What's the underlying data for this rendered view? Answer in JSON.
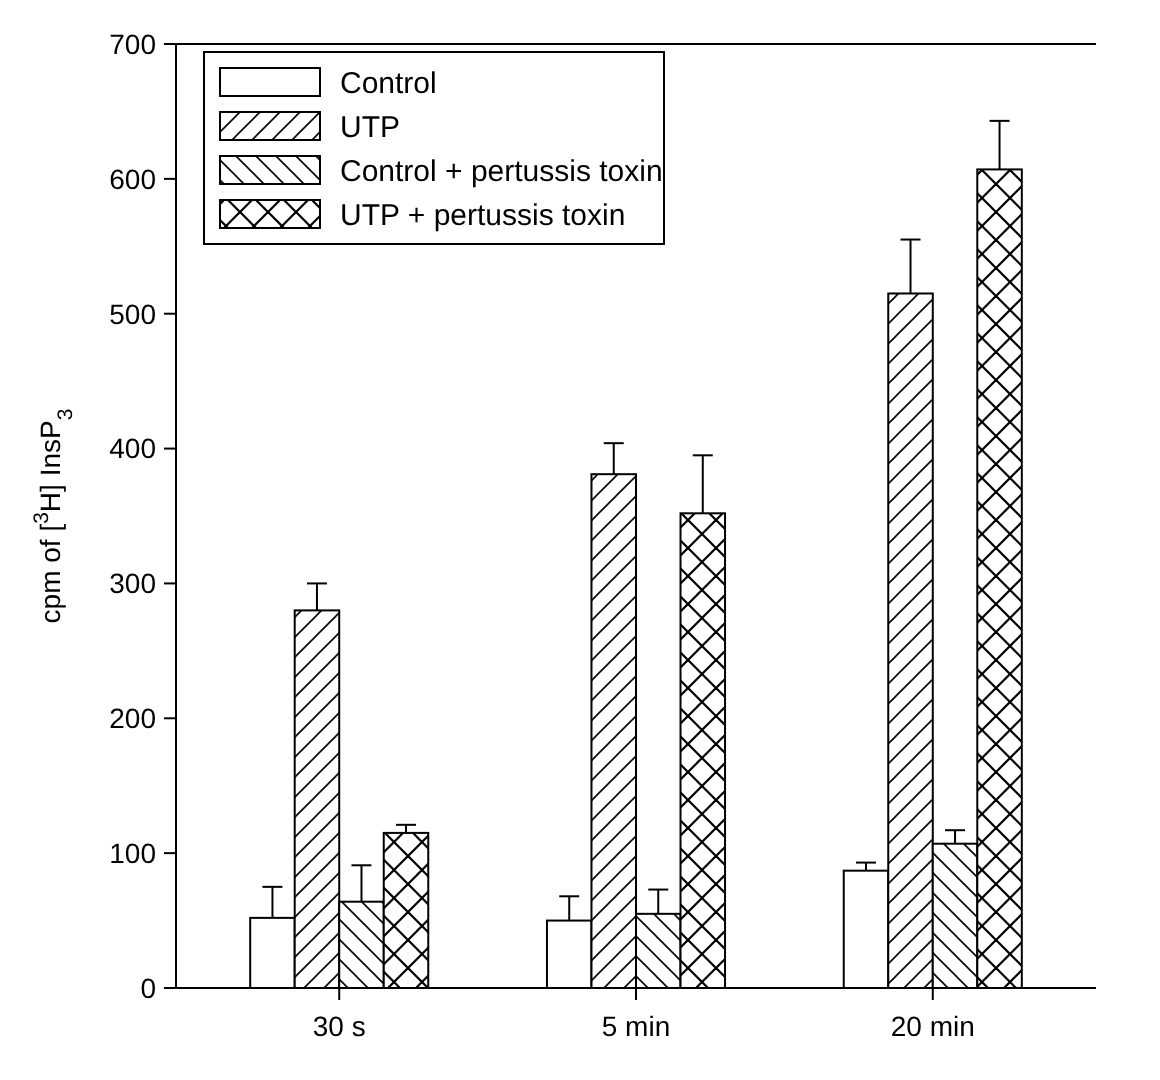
{
  "chart_data": {
    "type": "bar",
    "ylabel": "cpm of [$^{3}$H] InsP$_{3}$",
    "categories": [
      "30 s",
      "5 min",
      "20 min"
    ],
    "series": [
      {
        "name": "Control",
        "values": [
          52,
          50,
          87
        ],
        "errors": [
          [
            52,
            75
          ],
          [
            50,
            68
          ],
          [
            87,
            93
          ]
        ]
      },
      {
        "name": "UTP",
        "values": [
          280,
          381,
          515
        ],
        "errors": [
          [
            280,
            300
          ],
          [
            381,
            404
          ],
          [
            515,
            555
          ]
        ]
      },
      {
        "name": "Control + pertussis toxin",
        "values": [
          64,
          55,
          107
        ],
        "errors": [
          [
            64,
            91
          ],
          [
            55,
            73
          ],
          [
            107,
            117
          ]
        ]
      },
      {
        "name": "UTP + pertussis toxin",
        "values": [
          115,
          352,
          607
        ],
        "errors": [
          [
            115,
            121
          ],
          [
            352,
            395
          ],
          [
            607,
            643
          ]
        ]
      }
    ],
    "ylim": [
      0,
      700
    ],
    "yticks": [
      0,
      100,
      200,
      300,
      400,
      500,
      600,
      700
    ],
    "legend": "top left"
  }
}
